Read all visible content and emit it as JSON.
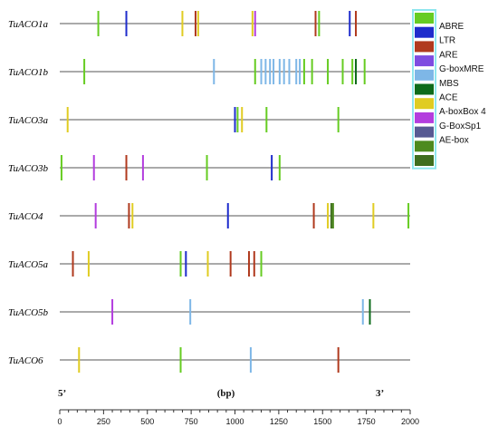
{
  "chart_data": {
    "type": "gene-element-map",
    "axis": {
      "min": 0,
      "max": 2000,
      "ticks": [
        0,
        250,
        500,
        750,
        1000,
        1250,
        1500,
        1750,
        2000
      ],
      "left_label": "5’",
      "center_label": "(bp)",
      "right_label": "3’"
    },
    "elements": [
      {
        "name": "ABRE",
        "color": "#66CC22"
      },
      {
        "name": "LTR",
        "color": "#1E2CCC"
      },
      {
        "name": "ARE",
        "color": "#B03A1E"
      },
      {
        "name": "G-boxMRE",
        "color": "#7E4CE0"
      },
      {
        "name": "MBS",
        "color": "#7EB7E7"
      },
      {
        "name": "ACE",
        "color": "#0E6B1B"
      },
      {
        "name": "A-boxBox 4",
        "color": "#E0CC22"
      },
      {
        "name": "G-BoxSp1",
        "color": "#B33DDE"
      },
      {
        "name": "AE-box",
        "color": "#575A93"
      },
      {
        "name": "",
        "color": "#4D8A1E"
      },
      {
        "name": "",
        "color": "#3F6E1E"
      }
    ],
    "legend_labels": [
      "ABRE",
      "LTR",
      "ARE",
      "G-boxMRE",
      "MBS",
      "ACE",
      "A-boxBox 4",
      "G-BoxSp1",
      "AE-box"
    ],
    "genes": [
      {
        "name": "TuACO1a",
        "marks": [
          {
            "pos": 220,
            "color": "#66CC22"
          },
          {
            "pos": 380,
            "color": "#1E2CCC"
          },
          {
            "pos": 700,
            "color": "#E0CC22"
          },
          {
            "pos": 775,
            "color": "#B03A1E"
          },
          {
            "pos": 790,
            "color": "#E0CC22"
          },
          {
            "pos": 1100,
            "color": "#E0CC22"
          },
          {
            "pos": 1115,
            "color": "#B33DDE"
          },
          {
            "pos": 1460,
            "color": "#B03A1E"
          },
          {
            "pos": 1480,
            "color": "#66CC22"
          },
          {
            "pos": 1655,
            "color": "#1E2CCC"
          },
          {
            "pos": 1690,
            "color": "#B03A1E"
          }
        ]
      },
      {
        "name": "TuACO1b",
        "marks": [
          {
            "pos": 140,
            "color": "#66CC22"
          },
          {
            "pos": 880,
            "color": "#7EB7E7"
          },
          {
            "pos": 1115,
            "color": "#66CC22"
          },
          {
            "pos": 1150,
            "color": "#7EB7E7"
          },
          {
            "pos": 1175,
            "color": "#7EB7E7"
          },
          {
            "pos": 1200,
            "color": "#7EB7E7"
          },
          {
            "pos": 1220,
            "color": "#7EB7E7"
          },
          {
            "pos": 1255,
            "color": "#7EB7E7"
          },
          {
            "pos": 1280,
            "color": "#7EB7E7"
          },
          {
            "pos": 1310,
            "color": "#7EB7E7"
          },
          {
            "pos": 1350,
            "color": "#7EB7E7"
          },
          {
            "pos": 1370,
            "color": "#7EB7E7"
          },
          {
            "pos": 1395,
            "color": "#66CC22"
          },
          {
            "pos": 1440,
            "color": "#66CC22"
          },
          {
            "pos": 1530,
            "color": "#66CC22"
          },
          {
            "pos": 1615,
            "color": "#66CC22"
          },
          {
            "pos": 1670,
            "color": "#66CC22"
          },
          {
            "pos": 1690,
            "color": "#0E6B1B"
          },
          {
            "pos": 1740,
            "color": "#66CC22"
          }
        ]
      },
      {
        "name": "TuACO3a",
        "marks": [
          {
            "pos": 45,
            "color": "#E0CC22"
          },
          {
            "pos": 1000,
            "color": "#1E2CCC"
          },
          {
            "pos": 1015,
            "color": "#66CC22"
          },
          {
            "pos": 1040,
            "color": "#E0CC22"
          },
          {
            "pos": 1180,
            "color": "#66CC22"
          },
          {
            "pos": 1590,
            "color": "#66CC22"
          }
        ]
      },
      {
        "name": "TuACO3b",
        "marks": [
          {
            "pos": 10,
            "color": "#66CC22"
          },
          {
            "pos": 195,
            "color": "#B33DDE"
          },
          {
            "pos": 380,
            "color": "#B03A1E"
          },
          {
            "pos": 475,
            "color": "#B33DDE"
          },
          {
            "pos": 840,
            "color": "#66CC22"
          },
          {
            "pos": 1210,
            "color": "#1E2CCC"
          },
          {
            "pos": 1255,
            "color": "#66CC22"
          }
        ]
      },
      {
        "name": "TuACO4",
        "marks": [
          {
            "pos": 205,
            "color": "#B33DDE"
          },
          {
            "pos": 395,
            "color": "#B03A1E"
          },
          {
            "pos": 415,
            "color": "#E0CC22"
          },
          {
            "pos": 960,
            "color": "#1E2CCC"
          },
          {
            "pos": 1450,
            "color": "#B03A1E"
          },
          {
            "pos": 1530,
            "color": "#E0CC22"
          },
          {
            "pos": 1550,
            "color": "#3F6E1E"
          },
          {
            "pos": 1560,
            "color": "#4D8A1E"
          },
          {
            "pos": 1790,
            "color": "#E0CC22"
          },
          {
            "pos": 1990,
            "color": "#66CC22"
          }
        ]
      },
      {
        "name": "TuACO5a",
        "marks": [
          {
            "pos": 75,
            "color": "#B03A1E"
          },
          {
            "pos": 165,
            "color": "#E0CC22"
          },
          {
            "pos": 690,
            "color": "#66CC22"
          },
          {
            "pos": 720,
            "color": "#1E2CCC"
          },
          {
            "pos": 845,
            "color": "#E0CC22"
          },
          {
            "pos": 975,
            "color": "#B03A1E"
          },
          {
            "pos": 1080,
            "color": "#B03A1E"
          },
          {
            "pos": 1110,
            "color": "#B03A1E"
          },
          {
            "pos": 1150,
            "color": "#66CC22"
          }
        ]
      },
      {
        "name": "TuACO5b",
        "marks": [
          {
            "pos": 300,
            "color": "#B33DDE"
          },
          {
            "pos": 745,
            "color": "#7EB7E7"
          },
          {
            "pos": 1730,
            "color": "#7EB7E7"
          },
          {
            "pos": 1770,
            "color": "#0E6B1B"
          }
        ]
      },
      {
        "name": "TuACO6",
        "marks": [
          {
            "pos": 110,
            "color": "#E0CC22"
          },
          {
            "pos": 690,
            "color": "#66CC22"
          },
          {
            "pos": 1090,
            "color": "#7EB7E7"
          },
          {
            "pos": 1590,
            "color": "#B03A1E"
          }
        ]
      }
    ]
  }
}
